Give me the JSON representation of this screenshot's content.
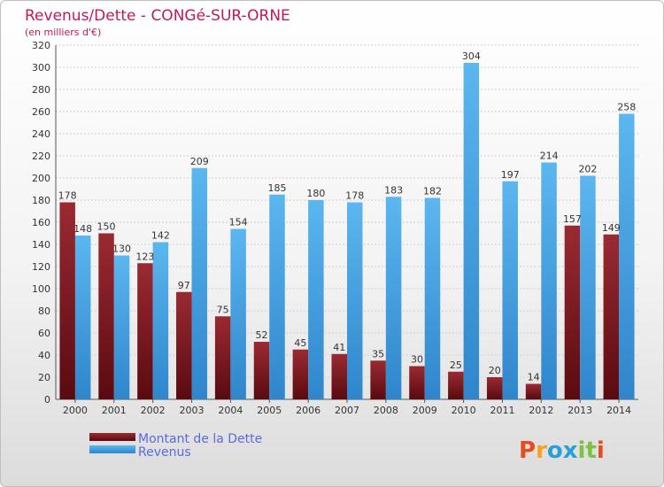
{
  "chart_data": {
    "type": "bar",
    "title": "Revenus/Dette - CONGé-SUR-ORNE",
    "subtitle": "(en milliers d'€)",
    "categories": [
      "2000",
      "2001",
      "2002",
      "2003",
      "2004",
      "2005",
      "2006",
      "2007",
      "2008",
      "2009",
      "2010",
      "2011",
      "2012",
      "2013",
      "2014"
    ],
    "series": [
      {
        "name": "Montant de la Dette",
        "color": "#7a1a22",
        "values": [
          178,
          150,
          123,
          97,
          75,
          52,
          45,
          41,
          35,
          30,
          25,
          20,
          14,
          157,
          149
        ]
      },
      {
        "name": "Revenus",
        "color": "#3a9be0",
        "values": [
          148,
          130,
          142,
          209,
          154,
          185,
          180,
          178,
          183,
          182,
          304,
          197,
          214,
          202,
          258
        ]
      }
    ],
    "ylim": [
      0,
      320
    ],
    "yticks": [
      0,
      20,
      40,
      60,
      80,
      100,
      120,
      140,
      160,
      180,
      200,
      220,
      240,
      260,
      280,
      300,
      320
    ],
    "grid": true,
    "legend": "bottom-left"
  },
  "logo": {
    "letters": [
      "P",
      "r",
      "o",
      "x",
      "i",
      "t",
      "i"
    ],
    "colors": [
      "#e84c1e",
      "#f7a21b",
      "#2a9fd6",
      "#2a9fd6",
      "#7cc242",
      "#7cc242",
      "#e84c1e"
    ]
  }
}
